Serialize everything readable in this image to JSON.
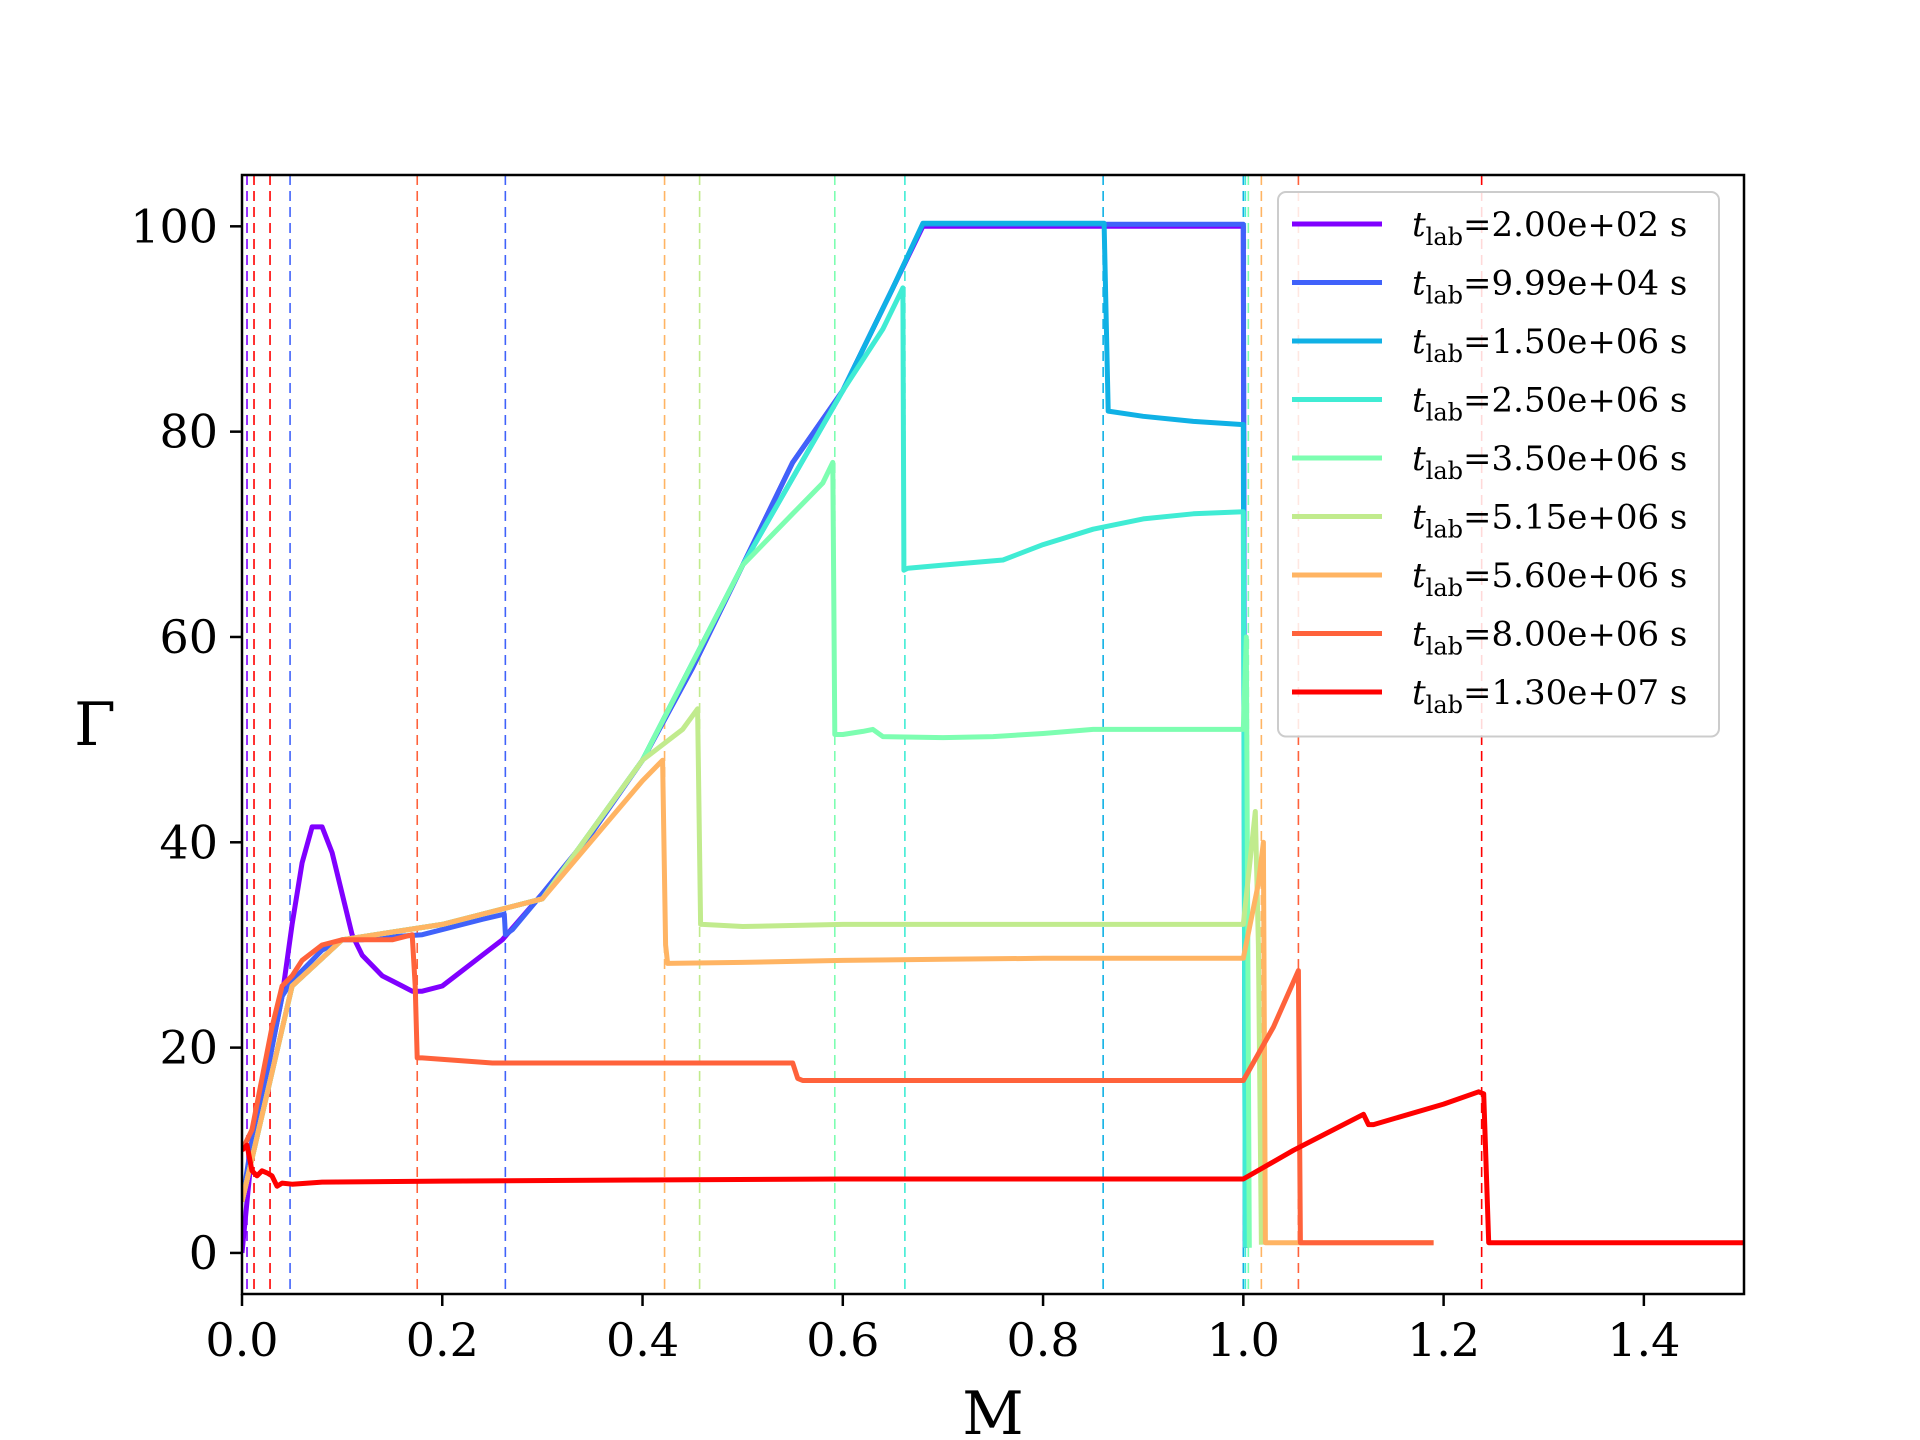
{
  "chart_data": {
    "type": "line",
    "xlabel": "M",
    "ylabel": "Γ",
    "xlim": [
      0.0,
      1.5
    ],
    "ylim": [
      -4,
      105
    ],
    "xticks": [
      "0.0",
      "0.2",
      "0.4",
      "0.6",
      "0.8",
      "1.0",
      "1.2",
      "1.4"
    ],
    "xtick_values": [
      0.0,
      0.2,
      0.4,
      0.6,
      0.8,
      1.0,
      1.2,
      1.4
    ],
    "yticks": [
      "0",
      "20",
      "40",
      "60",
      "80",
      "100"
    ],
    "ytick_values": [
      0,
      20,
      40,
      60,
      80,
      100
    ],
    "grid": false,
    "legend_position": "top-right",
    "series": [
      {
        "name": "t_lab=2.00e+02 s",
        "legend_main": "t",
        "legend_sub": "lab",
        "legend_value": "=2.00e+02 s",
        "color": "#8000ff",
        "x": [
          0.0,
          0.01,
          0.02,
          0.03,
          0.04,
          0.05,
          0.06,
          0.07,
          0.08,
          0.09,
          0.1,
          0.11,
          0.12,
          0.13,
          0.14,
          0.15,
          0.16,
          0.17,
          0.18,
          0.2,
          0.22,
          0.24,
          0.26,
          0.3,
          0.35,
          0.4,
          0.45,
          0.5,
          0.55,
          0.6,
          0.65,
          0.68,
          0.7,
          0.8,
          0.9,
          1.0,
          1.002
        ],
        "y": [
          0,
          10,
          15,
          20,
          25,
          32,
          38,
          41.5,
          41.5,
          39,
          35,
          31,
          29,
          28,
          27,
          26.5,
          26,
          25.5,
          25.5,
          26,
          27.5,
          29,
          30.5,
          35,
          41,
          48,
          57,
          67,
          77,
          84,
          94,
          100,
          100,
          100,
          100,
          100,
          0.5
        ],
        "dashed_marker_x": 0.005
      },
      {
        "name": "t_lab=9.99e+04 s",
        "legend_main": "t",
        "legend_sub": "lab",
        "legend_value": "=9.99e+04 s",
        "color": "#4062fa",
        "x": [
          0.0,
          0.01,
          0.02,
          0.03,
          0.04,
          0.05,
          0.06,
          0.08,
          0.1,
          0.12,
          0.15,
          0.18,
          0.2,
          0.24,
          0.262,
          0.263,
          0.27,
          0.3,
          0.35,
          0.4,
          0.45,
          0.5,
          0.55,
          0.6,
          0.65,
          0.68,
          0.7,
          0.8,
          0.9,
          1.0,
          1.002
        ],
        "y": [
          5,
          11,
          15,
          20,
          25,
          26.5,
          27.5,
          29.5,
          30.5,
          30.5,
          30.8,
          31,
          31.5,
          32.5,
          33,
          31,
          31.5,
          35,
          41,
          48,
          57,
          67,
          77,
          84,
          94,
          100.2,
          100.2,
          100.2,
          100.2,
          100.2,
          0.5
        ],
        "dashed_marker_x": 0.263
      },
      {
        "name": "t_lab=1.50e+06 s",
        "legend_main": "t",
        "legend_sub": "lab",
        "legend_value": "=1.50e+06 s",
        "color": "#10b1e5",
        "x": [
          0.0,
          0.05,
          0.1,
          0.2,
          0.3,
          0.4,
          0.5,
          0.6,
          0.65,
          0.68,
          0.8,
          0.86,
          0.861,
          0.865,
          0.9,
          0.95,
          0.998,
          1.0,
          1.002
        ],
        "y": [
          5,
          26,
          30.5,
          32,
          34.5,
          48,
          67,
          84,
          94,
          100.3,
          100.3,
          100.3,
          100.3,
          82,
          81.5,
          81,
          80.7,
          80.7,
          0.5
        ],
        "dashed_marker_x": 0.86
      },
      {
        "name": "t_lab=2.50e+06 s",
        "legend_main": "t",
        "legend_sub": "lab",
        "legend_value": "=2.50e+06 s",
        "color": "#40ecd4",
        "x": [
          0.0,
          0.05,
          0.1,
          0.2,
          0.3,
          0.4,
          0.5,
          0.6,
          0.64,
          0.66,
          0.661,
          0.665,
          0.7,
          0.76,
          0.8,
          0.85,
          0.9,
          0.95,
          1.0,
          1.002
        ],
        "y": [
          5,
          26,
          30.5,
          32,
          34.5,
          48,
          67,
          84,
          90,
          94,
          66.5,
          66.7,
          67,
          67.5,
          69,
          70.5,
          71.5,
          72,
          72.2,
          0.5
        ],
        "dashed_marker_x": 0.662
      },
      {
        "name": "t_lab=3.50e+06 s",
        "legend_main": "t",
        "legend_sub": "lab",
        "legend_value": "=3.50e+06 s",
        "color": "#7dfeb1",
        "x": [
          0.0,
          0.05,
          0.1,
          0.2,
          0.3,
          0.4,
          0.5,
          0.55,
          0.58,
          0.59,
          0.592,
          0.6,
          0.62,
          0.63,
          0.64,
          0.7,
          0.75,
          0.8,
          0.85,
          0.9,
          1.0,
          1.003,
          1.006
        ],
        "y": [
          5,
          26,
          30.5,
          32,
          34.5,
          48,
          67,
          72,
          75,
          77,
          50.5,
          50.5,
          50.8,
          51,
          50.3,
          50.2,
          50.3,
          50.6,
          51,
          51,
          51,
          60,
          0.5
        ],
        "dashed_marker_x": 0.592
      },
      {
        "name": "t_lab=5.15e+06 s",
        "legend_main": "t",
        "legend_sub": "lab",
        "legend_value": "=5.15e+06 s",
        "color": "#c1eb8d",
        "x": [
          0.0,
          0.05,
          0.1,
          0.2,
          0.3,
          0.4,
          0.44,
          0.455,
          0.458,
          0.46,
          0.5,
          0.6,
          0.7,
          0.8,
          0.9,
          1.0,
          1.012,
          1.015,
          1.018
        ],
        "y": [
          5,
          26,
          30.5,
          32,
          34.5,
          48,
          51,
          53,
          32,
          32,
          31.8,
          32,
          32,
          32,
          32,
          32,
          43,
          30,
          0.8
        ],
        "dashed_marker_x": 0.457
      },
      {
        "name": "t_lab=5.60e+06 s",
        "legend_main": "t",
        "legend_sub": "lab",
        "legend_value": "=5.60e+06 s",
        "color": "#ffb463",
        "x": [
          0.0,
          0.05,
          0.1,
          0.2,
          0.3,
          0.4,
          0.42,
          0.423,
          0.425,
          0.5,
          0.6,
          0.7,
          0.8,
          0.9,
          1.0,
          1.015,
          1.02,
          1.022,
          1.03,
          1.1,
          1.19
        ],
        "y": [
          5,
          26,
          30.5,
          32,
          34.5,
          46,
          48,
          30,
          28.2,
          28.3,
          28.5,
          28.6,
          28.7,
          28.7,
          28.7,
          36,
          40,
          1,
          1,
          1,
          1
        ],
        "dashed_marker_x": 0.422
      },
      {
        "name": "t_lab=8.00e+06 s",
        "legend_main": "t",
        "legend_sub": "lab",
        "legend_value": "=8.00e+06 s",
        "color": "#ff623b",
        "x": [
          0.0,
          0.005,
          0.01,
          0.02,
          0.03,
          0.04,
          0.05,
          0.06,
          0.08,
          0.1,
          0.12,
          0.15,
          0.17,
          0.173,
          0.175,
          0.18,
          0.25,
          0.35,
          0.45,
          0.55,
          0.555,
          0.56,
          0.7,
          0.8,
          0.9,
          1.0,
          1.03,
          1.055,
          1.057,
          1.06,
          1.1,
          1.19
        ],
        "y": [
          10,
          11,
          12,
          17,
          22,
          26,
          27,
          28.5,
          30,
          30.5,
          30.5,
          30.5,
          31,
          26,
          19,
          19,
          18.5,
          18.5,
          18.5,
          18.5,
          17,
          16.8,
          16.8,
          16.8,
          16.8,
          16.8,
          22,
          27.5,
          1,
          1,
          1,
          1
        ],
        "dashed_marker_x": 0.175
      },
      {
        "name": "t_lab=1.30e+07 s",
        "legend_main": "t",
        "legend_sub": "lab",
        "legend_value": "=1.30e+07 s",
        "color": "#ff0000",
        "x": [
          0.0,
          0.005,
          0.01,
          0.015,
          0.02,
          0.025,
          0.03,
          0.035,
          0.04,
          0.05,
          0.08,
          0.2,
          0.4,
          0.6,
          0.8,
          1.0,
          1.05,
          1.08,
          1.12,
          1.125,
          1.13,
          1.2,
          1.235,
          1.24,
          1.245,
          1.3,
          1.4,
          1.5
        ],
        "y": [
          10,
          10.5,
          8,
          7.5,
          8,
          7.8,
          7.5,
          6.5,
          6.8,
          6.7,
          6.9,
          7,
          7.1,
          7.2,
          7.2,
          7.2,
          10,
          11.5,
          13.5,
          12.5,
          12.5,
          14.5,
          15.7,
          15.5,
          1,
          1,
          1,
          1
        ],
        "dashed_marker_x": 1.238
      }
    ],
    "extra_dashed_markers": [
      {
        "x": 0.012,
        "color": "#ff0000"
      },
      {
        "x": 0.028,
        "color": "#ff0000"
      },
      {
        "x": 0.048,
        "color": "#4062fa"
      },
      {
        "x": 1.0,
        "color": "#10b1e5"
      },
      {
        "x": 1.002,
        "color": "#40ecd4"
      },
      {
        "x": 1.005,
        "color": "#7dfeb1"
      },
      {
        "x": 1.018,
        "color": "#ffb463"
      },
      {
        "x": 1.055,
        "color": "#ff623b"
      }
    ]
  }
}
